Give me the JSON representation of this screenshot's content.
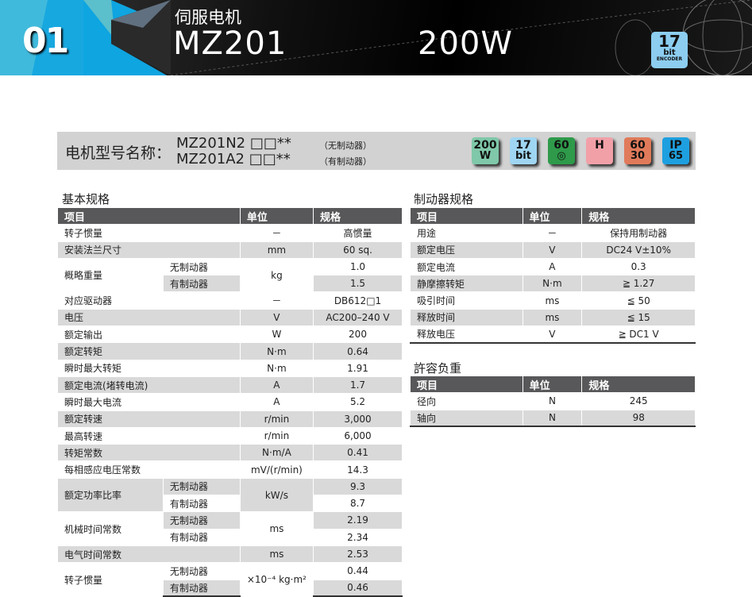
{
  "banner": {
    "number": "01",
    "category": "伺服电机",
    "model": "MZ201",
    "power": "200W",
    "encoder_badge": {
      "line1": "17",
      "line2": "bit",
      "line3": "ENCODER"
    }
  },
  "name_bar": {
    "label": "电机型号名称：",
    "models": [
      {
        "code": "MZ201N2 □□**",
        "note": "（无制动器）"
      },
      {
        "code": "MZ201A2 □□**",
        "note": "（有制动器）"
      }
    ],
    "badges": [
      {
        "icon": "200w-power-icon",
        "line1": "200",
        "line2": "W",
        "color": "#7fc8a9"
      },
      {
        "icon": "17bit-encoder-icon",
        "line1": "17",
        "line2": "bit",
        "color": "#9fd6f2"
      },
      {
        "icon": "60-square-flange-icon",
        "line1": "60",
        "line2": "◎",
        "color": "#2e9a4a"
      },
      {
        "icon": "high-inertia-icon",
        "line1": "H",
        "line2": "",
        "color": "#f2a0a8"
      },
      {
        "icon": "speed-3000-6000-icon",
        "line1": "60",
        "line2": "30",
        "color": "#e07a5a"
      },
      {
        "icon": "ip65-icon",
        "line1": "IP",
        "line2": "65",
        "color": "#1ea0e0"
      }
    ]
  },
  "basic": {
    "title": "基本规格",
    "headers": [
      "项目",
      "单位",
      "规格"
    ],
    "rows": [
      {
        "item": "转子惯量",
        "unit": "－",
        "values": [
          "高惯量"
        ]
      },
      {
        "item": "安装法兰尺寸",
        "unit": "mm",
        "values": [
          "60 sq."
        ]
      },
      {
        "item": "概略重量",
        "subs": [
          "无制动器",
          "有制动器"
        ],
        "unit": "kg",
        "values": [
          "1.0",
          "1.5"
        ]
      },
      {
        "item": "对应驱动器",
        "unit": "－",
        "values": [
          "DB612□1"
        ]
      },
      {
        "item": "电压",
        "unit": "V",
        "values": [
          "AC200–240 V"
        ]
      },
      {
        "item": "额定输出",
        "unit": "W",
        "values": [
          "200"
        ]
      },
      {
        "item": "额定转矩",
        "unit": "N·m",
        "values": [
          "0.64"
        ]
      },
      {
        "item": "瞬时最大转矩",
        "unit": "N·m",
        "values": [
          "1.91"
        ]
      },
      {
        "item": "额定电流(堵转电流)",
        "unit": "A",
        "values": [
          "1.7"
        ]
      },
      {
        "item": "瞬时最大电流",
        "unit": "A",
        "values": [
          "5.2"
        ]
      },
      {
        "item": "额定转速",
        "unit": "r/min",
        "values": [
          "3,000"
        ]
      },
      {
        "item": "最高转速",
        "unit": "r/min",
        "values": [
          "6,000"
        ]
      },
      {
        "item": "转矩常数",
        "unit": "N·m/A",
        "values": [
          "0.41"
        ]
      },
      {
        "item": "每相感应电压常数",
        "unit": "mV/(r/min)",
        "values": [
          "14.3"
        ]
      },
      {
        "item": "额定功率比率",
        "subs": [
          "无制动器",
          "有制动器"
        ],
        "unit": "kW/s",
        "values": [
          "9.3",
          "8.7"
        ]
      },
      {
        "item": "机械时间常数",
        "subs": [
          "无制动器",
          "有制动器"
        ],
        "unit": "ms",
        "values": [
          "2.19",
          "2.34"
        ]
      },
      {
        "item": "电气时间常数",
        "unit": "ms",
        "values": [
          "2.53"
        ]
      },
      {
        "item": "转子惯量",
        "subs": [
          "无制动器",
          "有制动器"
        ],
        "unit": "×10⁻⁴ kg·m²",
        "values": [
          "0.44",
          "0.46"
        ]
      }
    ]
  },
  "brake": {
    "title": "制动器规格",
    "headers": [
      "项目",
      "单位",
      "规格"
    ],
    "rows": [
      {
        "item": "用途",
        "unit": "－",
        "values": [
          "保持用制动器"
        ]
      },
      {
        "item": "额定电压",
        "unit": "V",
        "values": [
          "DC24 V±10%"
        ]
      },
      {
        "item": "额定电流",
        "unit": "A",
        "values": [
          "0.3"
        ]
      },
      {
        "item": "静摩擦转矩",
        "unit": "N·m",
        "values": [
          "≧ 1.27"
        ]
      },
      {
        "item": "吸引时间",
        "unit": "ms",
        "values": [
          "≦ 50"
        ]
      },
      {
        "item": "释放时间",
        "unit": "ms",
        "values": [
          "≦ 15"
        ]
      },
      {
        "item": "释放电压",
        "unit": "V",
        "values": [
          "≧ DC1 V"
        ]
      }
    ]
  },
  "load": {
    "title": "許容负重",
    "headers": [
      "项目",
      "单位",
      "规格"
    ],
    "rows": [
      {
        "item": "径向",
        "unit": "N",
        "values": [
          "245"
        ]
      },
      {
        "item": "轴向",
        "unit": "N",
        "values": [
          "98"
        ]
      }
    ]
  }
}
